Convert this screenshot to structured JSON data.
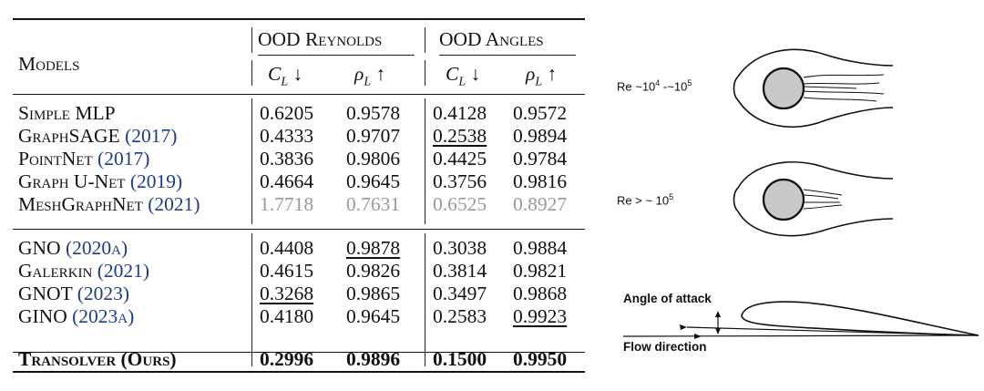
{
  "table": {
    "header": {
      "models": "Models",
      "group1": "OOD Reynolds",
      "group2": "OOD Angles",
      "cl": "C",
      "cl_sub": "L",
      "cl_arrow": "↓",
      "rho": "ρ",
      "rho_sub": "L",
      "rho_arrow": "↑"
    },
    "rows": [
      {
        "name": "Simple MLP",
        "cite": "",
        "v": [
          "0.6205",
          "0.9578",
          "0.4128",
          "0.9572"
        ]
      },
      {
        "name": "GraphSAGE",
        "cite": "2017",
        "v": [
          "0.4333",
          "0.9707",
          "0.2538",
          "0.9894"
        ]
      },
      {
        "name": "PointNet",
        "cite": "2017",
        "v": [
          "0.3836",
          "0.9806",
          "0.4425",
          "0.9784"
        ]
      },
      {
        "name": "Graph U-Net",
        "cite": "2019",
        "v": [
          "0.4664",
          "0.9645",
          "0.3756",
          "0.9816"
        ]
      },
      {
        "name": "MeshGraphNet",
        "cite": "2021",
        "v": [
          "1.7718",
          "0.7631",
          "0.6525",
          "0.8927"
        ]
      },
      {
        "name": "GNO",
        "cite": "2020a",
        "v": [
          "0.4408",
          "0.9878",
          "0.3038",
          "0.9884"
        ]
      },
      {
        "name": "Galerkin",
        "cite": "2021",
        "v": [
          "0.4615",
          "0.9826",
          "0.3814",
          "0.9821"
        ]
      },
      {
        "name": "GNOT",
        "cite": "2023",
        "v": [
          "0.3268",
          "0.9865",
          "0.3497",
          "0.9868"
        ]
      },
      {
        "name": "GINO",
        "cite": "2023a",
        "v": [
          "0.4180",
          "0.9645",
          "0.2583",
          "0.9923"
        ]
      },
      {
        "name": "Transolver (Ours)",
        "cite": "",
        "v": [
          "0.2996",
          "0.9896",
          "0.1500",
          "0.9950"
        ]
      }
    ]
  },
  "figure": {
    "re_low": {
      "base": "Re ~10",
      "exp1": "4",
      "mid": " -~10",
      "exp2": "5"
    },
    "re_high": {
      "base": "Re > ~ 10",
      "exp": "5"
    },
    "angle_label": "Angle of attack",
    "flow_label": "Flow direction"
  }
}
